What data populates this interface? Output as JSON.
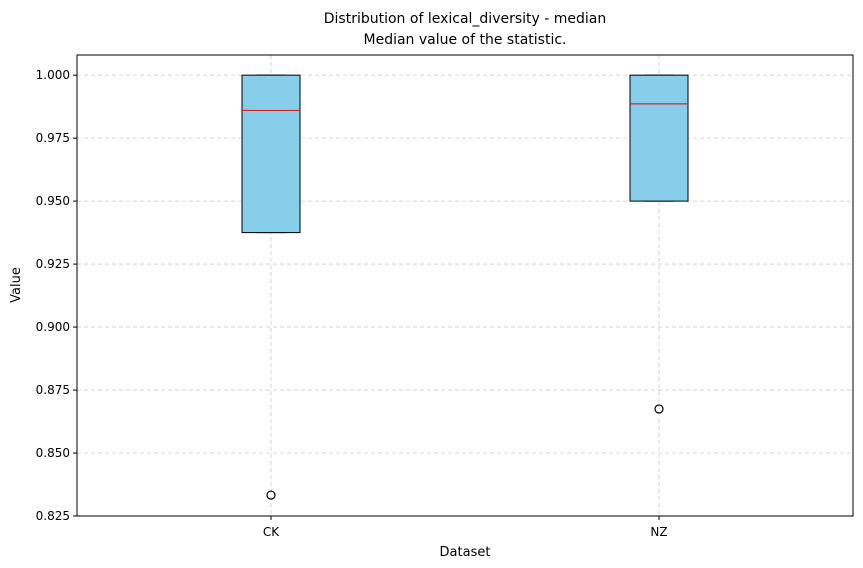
{
  "chart_data": {
    "type": "box",
    "title": "Distribution of lexical_diversity - median",
    "subtitle": "Median value of the statistic.",
    "xlabel": "Dataset",
    "ylabel": "Value",
    "ylim": [
      0.825,
      1.008
    ],
    "yticks": [
      "0.825",
      "0.850",
      "0.875",
      "0.900",
      "0.925",
      "0.950",
      "0.975",
      "1.000"
    ],
    "categories": [
      "CK",
      "NZ"
    ],
    "grid": true,
    "boxes": [
      {
        "category": "CK",
        "whisker_low": 0.9375,
        "q1": 0.9375,
        "median": 0.986,
        "q3": 1.0,
        "whisker_high": 1.0,
        "outliers": [
          0.8333
        ]
      },
      {
        "category": "NZ",
        "whisker_low": 0.95,
        "q1": 0.95,
        "median": 0.9886,
        "q3": 1.0,
        "whisker_high": 1.0,
        "outliers": [
          0.8675
        ]
      }
    ],
    "colors": {
      "box_fill": "#87ceeb",
      "median_line": "#d62728",
      "grid": "#cccccc",
      "edge": "#000000"
    }
  }
}
